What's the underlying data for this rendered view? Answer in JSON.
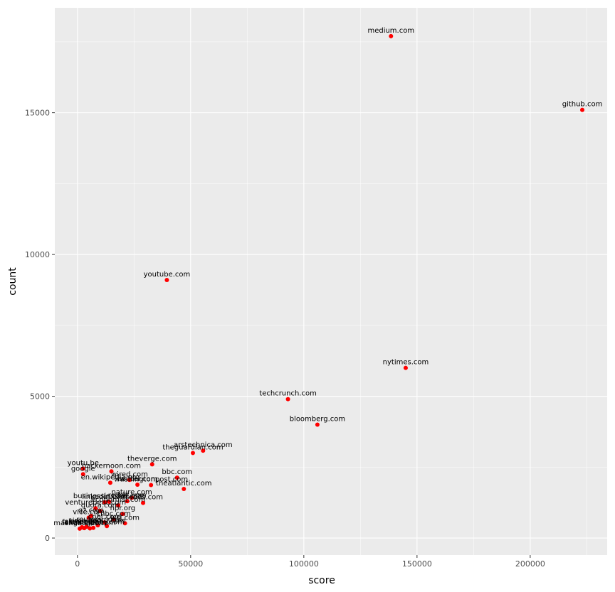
{
  "chart_data": {
    "type": "scatter",
    "title": "",
    "xlabel": "score",
    "ylabel": "count",
    "xlim": [
      -10000,
      234000
    ],
    "ylim": [
      -600,
      18700
    ],
    "x_ticks": [
      0,
      50000,
      100000,
      150000,
      200000
    ],
    "y_ticks": [
      0,
      5000,
      10000,
      15000
    ],
    "grid": true,
    "legend": "none",
    "colors": {
      "panel": "#ebebeb",
      "grid": "#ffffff",
      "point": "#ff0000",
      "label": "#000000",
      "tick": "#4d4d4d"
    },
    "points": [
      {
        "label": "medium.com",
        "x": 138500,
        "y": 17700
      },
      {
        "label": "github.com",
        "x": 223000,
        "y": 15100
      },
      {
        "label": "youtube.com",
        "x": 39500,
        "y": 9100
      },
      {
        "label": "nytimes.com",
        "x": 145000,
        "y": 6000
      },
      {
        "label": "techcrunch.com",
        "x": 93000,
        "y": 4900
      },
      {
        "label": "bloomberg.com",
        "x": 106000,
        "y": 4000
      },
      {
        "label": "arstechnica.com",
        "x": 55500,
        "y": 3080
      },
      {
        "label": "theguardian.com",
        "x": 51000,
        "y": 3000
      },
      {
        "label": "theverge.com",
        "x": 33000,
        "y": 2600
      },
      {
        "label": "youtu.be",
        "x": 2500,
        "y": 2450
      },
      {
        "label": "google",
        "x": 2500,
        "y": 2250
      },
      {
        "label": "hackernoon.com",
        "x": 15000,
        "y": 2350
      },
      {
        "label": "bbc.com",
        "x": 44000,
        "y": 2130
      },
      {
        "label": "wired.com",
        "x": 23000,
        "y": 2050
      },
      {
        "label": "en.wikipedia.org",
        "x": 14500,
        "y": 1950
      },
      {
        "label": "twitter.com",
        "x": 26500,
        "y": 1880
      },
      {
        "label": "washingtonpost.com",
        "x": 32500,
        "y": 1870
      },
      {
        "label": "theatlantic.com",
        "x": 47000,
        "y": 1730
      },
      {
        "label": "nature.com",
        "x": 24000,
        "y": 1420
      },
      {
        "label": "reddit.com",
        "x": 22000,
        "y": 1300
      },
      {
        "label": "businessinsider.com",
        "x": 14000,
        "y": 1280
      },
      {
        "label": "linkedin.com",
        "x": 12000,
        "y": 1260
      },
      {
        "label": "forbes.com",
        "x": 29000,
        "y": 1240
      },
      {
        "label": "economist.com",
        "x": 18000,
        "y": 1150
      },
      {
        "label": "venturebeat.com",
        "x": 8000,
        "y": 1050
      },
      {
        "label": "quora.com",
        "x": 10000,
        "y": 950
      },
      {
        "label": "npr.org",
        "x": 20000,
        "y": 850
      },
      {
        "label": "qz.com",
        "x": 6000,
        "y": 780
      },
      {
        "label": "vice.com",
        "x": 5000,
        "y": 720
      },
      {
        "label": "cnbc.com",
        "x": 16000,
        "y": 650
      },
      {
        "label": "cnet.com",
        "x": 12000,
        "y": 550
      },
      {
        "label": "wsj.com",
        "x": 21000,
        "y": 520
      },
      {
        "label": "imgur.com",
        "x": 13000,
        "y": 420
      },
      {
        "label": "reuters.com",
        "x": 9000,
        "y": 450
      },
      {
        "label": "time.com",
        "x": 4000,
        "y": 400
      },
      {
        "label": "slate.com",
        "x": 2000,
        "y": 380
      },
      {
        "label": "vox.com",
        "x": 3000,
        "y": 350
      },
      {
        "label": "fastcompany.com",
        "x": 7000,
        "y": 360
      },
      {
        "label": "mashable.com",
        "x": 1000,
        "y": 330
      },
      {
        "label": "engadget.com",
        "x": 5500,
        "y": 340
      }
    ]
  }
}
